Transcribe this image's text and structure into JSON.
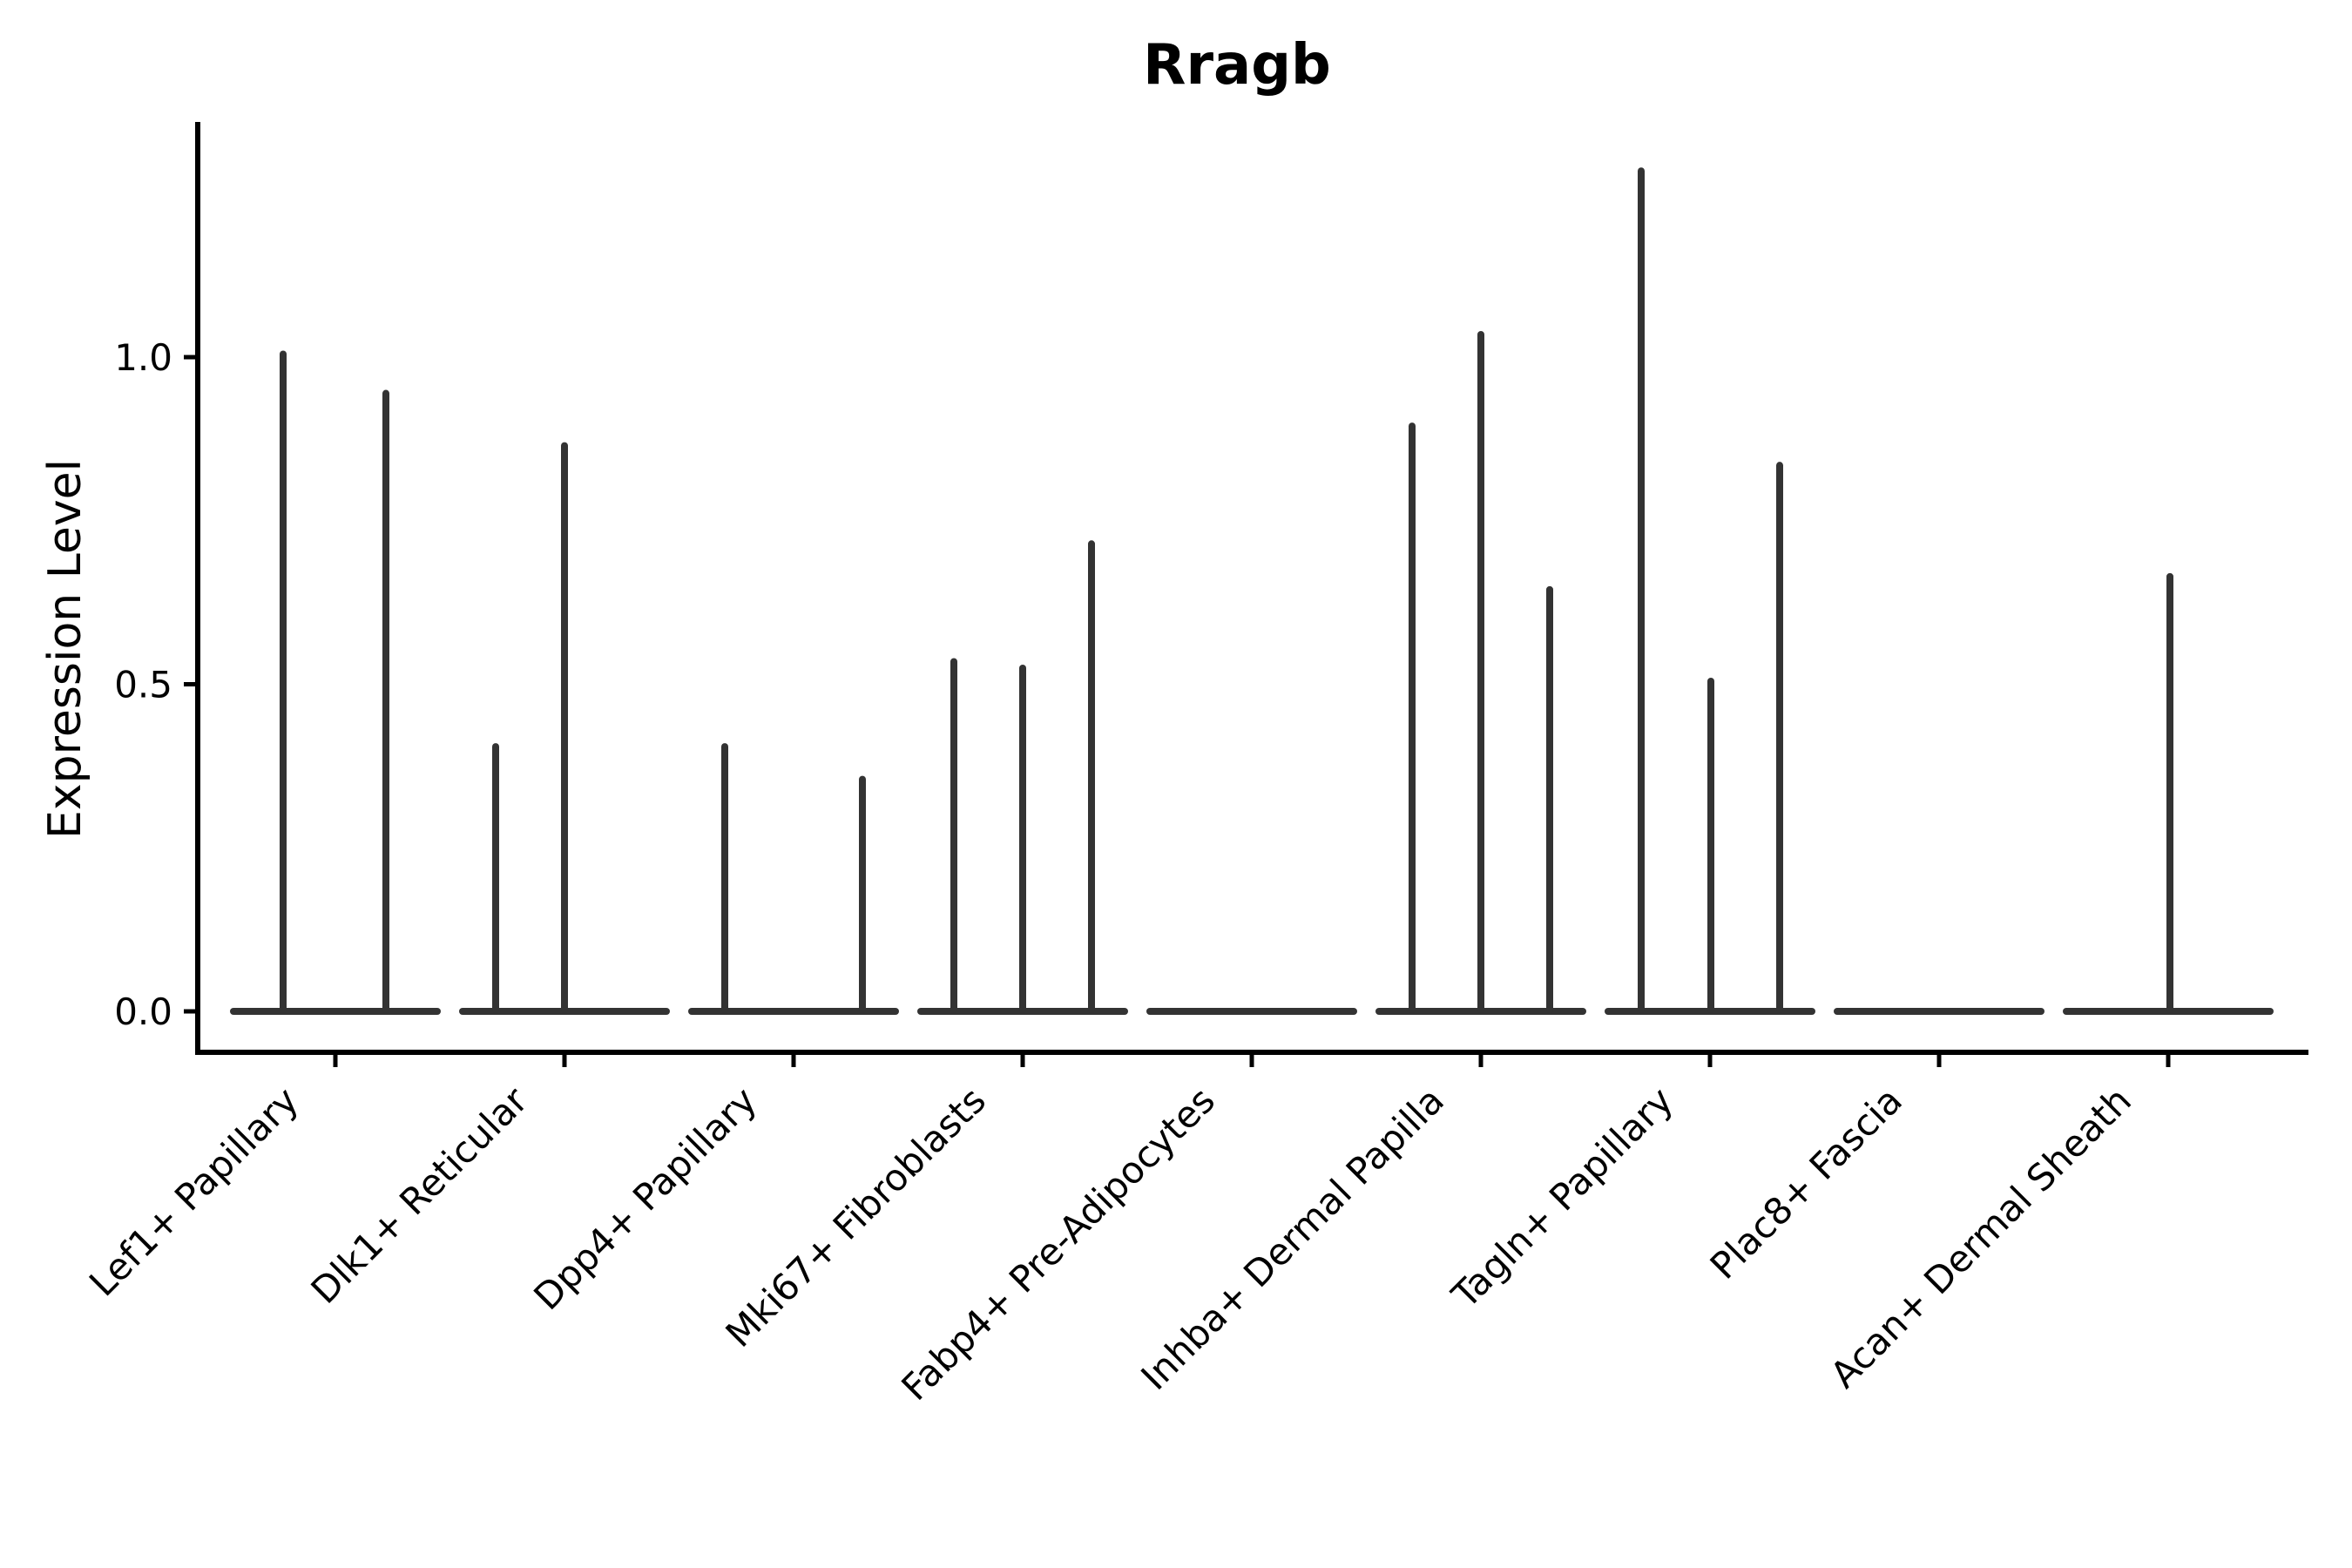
{
  "chart_data": {
    "type": "violin",
    "title": "Rragb",
    "ylabel": "Expression Level",
    "xlabel": "",
    "grid": false,
    "legend": null,
    "yticks": [
      "0.0",
      "0.5",
      "1.0"
    ],
    "ytick_values": [
      0,
      0.5,
      1.0
    ],
    "ylim": [
      -0.06,
      1.36
    ],
    "categories": [
      "Lef1+ Papillary",
      "Dlk1+ Reticular",
      "Dpp4+ Papillary",
      "Mki67+ Fibroblasts",
      "Fabp4+ Pre-Adipocytes",
      "Inhba+ Dermal Papilla",
      "Tagln+ Papillary",
      "Plac8+ Fascia",
      "Acan+ Dermal Sheath"
    ],
    "violins": [
      {
        "category": "Lef1+ Papillary",
        "body": "flat at 0",
        "spikes": [
          {
            "dx": -60,
            "value": 1.01
          },
          {
            "dx": 58,
            "value": 0.95
          }
        ]
      },
      {
        "category": "Dlk1+ Reticular",
        "body": "flat at 0",
        "spikes": [
          {
            "dx": -79,
            "value": 0.41
          },
          {
            "dx": 0,
            "value": 0.87
          }
        ]
      },
      {
        "category": "Dpp4+ Papillary",
        "body": "flat at 0",
        "spikes": [
          {
            "dx": -79,
            "value": 0.41
          },
          {
            "dx": 79,
            "value": 0.36
          }
        ]
      },
      {
        "category": "Mki67+ Fibroblasts",
        "body": "flat at 0",
        "spikes": [
          {
            "dx": -79,
            "value": 0.54
          },
          {
            "dx": 0,
            "value": 0.53
          },
          {
            "dx": 79,
            "value": 0.72
          }
        ]
      },
      {
        "category": "Fabp4+ Pre-Adipocytes",
        "body": "flat at 0",
        "spikes": []
      },
      {
        "category": "Inhba+ Dermal Papilla",
        "body": "flat at 0",
        "spikes": [
          {
            "dx": -79,
            "value": 0.9
          },
          {
            "dx": 0,
            "value": 1.04
          },
          {
            "dx": 79,
            "value": 0.65
          }
        ]
      },
      {
        "category": "Tagln+ Papillary",
        "body": "flat at 0",
        "spikes": [
          {
            "dx": -79,
            "value": 1.29
          },
          {
            "dx": 1,
            "value": 0.51
          },
          {
            "dx": 80,
            "value": 0.84
          }
        ]
      },
      {
        "category": "Plac8+ Fascia",
        "body": "flat at 0",
        "spikes": []
      },
      {
        "category": "Acan+ Dermal Sheath",
        "body": "flat at 0",
        "spikes": [
          {
            "dx": 2,
            "value": 0.67
          }
        ]
      }
    ],
    "colors": {
      "ink": "#000000",
      "violin": "#333333",
      "background": "#ffffff"
    }
  }
}
